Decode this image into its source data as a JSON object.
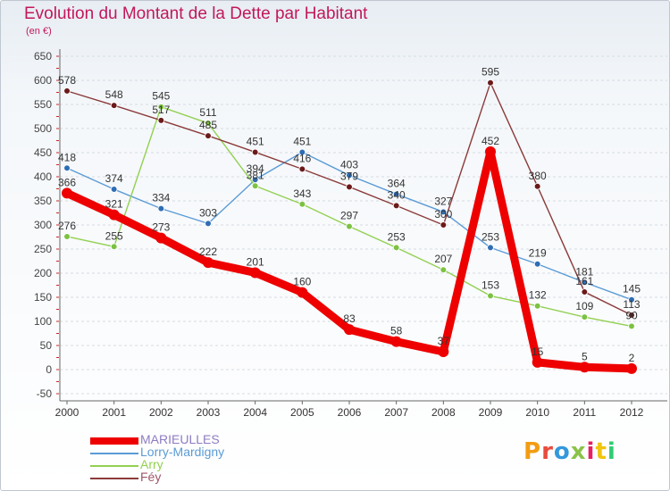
{
  "title": "Evolution du Montant de la Dette par Habitant",
  "unit": "(en €)",
  "logo": {
    "text": "Proxiti",
    "letter_colors": [
      "#f39c12",
      "#e74c3c",
      "#3498db",
      "#8bc34a",
      "#e91e63",
      "#f1c40f",
      "#2ecc71"
    ]
  },
  "chart_data": {
    "type": "line",
    "x": [
      "2000",
      "2001",
      "2002",
      "2003",
      "2004",
      "2005",
      "2006",
      "2007",
      "2008",
      "2009",
      "2010",
      "2011",
      "2012"
    ],
    "ylim": [
      -50,
      650
    ],
    "yticks": [
      -50,
      0,
      50,
      100,
      150,
      200,
      250,
      300,
      350,
      400,
      450,
      500,
      550,
      600,
      650
    ],
    "grid": "horizontal",
    "legend_position": "bottom-left",
    "series": [
      {
        "name": "Lorry-Mardigny",
        "color": "#5b9bd5",
        "dot": "#2f6db5",
        "values": [
          418,
          374,
          334,
          303,
          394,
          451,
          403,
          364,
          327,
          253,
          219,
          181,
          145
        ],
        "labels": [
          "418",
          "374",
          "334",
          "303",
          "394",
          "451",
          "403",
          "364",
          "327",
          "253",
          "219",
          "181",
          "145"
        ]
      },
      {
        "name": "Arry",
        "color": "#92d050",
        "dot": "#7cc242",
        "values": [
          276,
          255,
          545,
          511,
          381,
          343,
          297,
          253,
          207,
          153,
          132,
          109,
          90
        ],
        "labels": [
          "276",
          "255",
          "545",
          "511",
          "381",
          "343",
          "297",
          "253",
          "207",
          "153",
          "132",
          "109",
          "90"
        ]
      },
      {
        "name": "Féy",
        "color": "#8b3a3a",
        "dot": "#6b1a1a",
        "values": [
          578,
          548,
          517,
          485,
          451,
          416,
          379,
          340,
          300,
          595,
          380,
          161,
          113
        ],
        "labels": [
          "578",
          "548",
          "517",
          "485",
          "451",
          "416",
          "379",
          "340",
          "300",
          "595",
          "380",
          "161",
          "113"
        ]
      },
      {
        "name": "MARIEULLES",
        "color": "#ee0000",
        "dot": "#ee0000",
        "thick": true,
        "values": [
          366,
          321,
          273,
          222,
          201,
          160,
          83,
          58,
          37,
          452,
          15,
          5,
          2
        ],
        "labels": [
          "366",
          "321",
          "273",
          "222",
          "201",
          "160",
          "83",
          "58",
          "37",
          "452",
          "15",
          "5",
          "2"
        ]
      }
    ],
    "legend": [
      "MARIEULLES",
      "Lorry-Mardigny",
      "Arry",
      "Féy"
    ]
  }
}
